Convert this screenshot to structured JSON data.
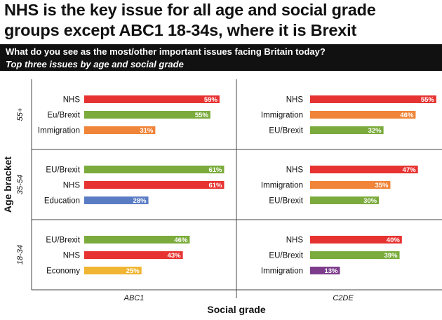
{
  "header": {
    "title_line1": "NHS is the key issue for all age and social grade",
    "title_line2": "groups except ABC1 18-34s, where it is Brexit",
    "question": "What do you see as the most/other important issues facing Britain today?",
    "subtitle": "Top three issues by age and social grade"
  },
  "colors": {
    "nhs": "#e63331",
    "brexit": "#7aab3c",
    "immigration": "#f08438",
    "education": "#5a7cc4",
    "economy": "#f0b532",
    "immigration_alt": "#7d3d8c",
    "banner": "#111111",
    "grid": "#444444"
  },
  "chart_data": {
    "type": "bar",
    "ylabel": "Age bracket",
    "xlabel": "Social grade",
    "columns": [
      "ABC1",
      "C2DE"
    ],
    "rows": [
      "55+",
      "35-54",
      "18-34"
    ],
    "panels": [
      {
        "row": "55+",
        "column": "ABC1",
        "bars": [
          {
            "label": "NHS",
            "value": 59,
            "value_label": "59%",
            "color": "#e63331"
          },
          {
            "label": "Eu/Brexit",
            "value": 55,
            "value_label": "55%",
            "color": "#7aab3c"
          },
          {
            "label": "Immigration",
            "value": 31,
            "value_label": "31%",
            "color": "#f08438"
          }
        ]
      },
      {
        "row": "55+",
        "column": "C2DE",
        "bars": [
          {
            "label": "NHS",
            "value": 55,
            "value_label": "55%",
            "color": "#e63331"
          },
          {
            "label": "Immigration",
            "value": 46,
            "value_label": "46%",
            "color": "#f08438"
          },
          {
            "label": "EU/Brexit",
            "value": 32,
            "value_label": "32%",
            "color": "#7aab3c"
          }
        ]
      },
      {
        "row": "35-54",
        "column": "ABC1",
        "bars": [
          {
            "label": "EU/Brexit",
            "value": 61,
            "value_label": "61%",
            "color": "#7aab3c"
          },
          {
            "label": "NHS",
            "value": 61,
            "value_label": "61%",
            "color": "#e63331"
          },
          {
            "label": "Education",
            "value": 28,
            "value_label": "28%",
            "color": "#5a7cc4"
          }
        ]
      },
      {
        "row": "35-54",
        "column": "C2DE",
        "bars": [
          {
            "label": "NHS",
            "value": 47,
            "value_label": "47%",
            "color": "#e63331"
          },
          {
            "label": "Immigration",
            "value": 35,
            "value_label": "35%",
            "color": "#f08438"
          },
          {
            "label": "EU/Brexit",
            "value": 30,
            "value_label": "30%",
            "color": "#7aab3c"
          }
        ]
      },
      {
        "row": "18-34",
        "column": "ABC1",
        "bars": [
          {
            "label": "EU/Brexit",
            "value": 46,
            "value_label": "46%",
            "color": "#7aab3c"
          },
          {
            "label": "NHS",
            "value": 43,
            "value_label": "43%",
            "color": "#e63331"
          },
          {
            "label": "Economy",
            "value": 25,
            "value_label": "25%",
            "color": "#f0b532"
          }
        ]
      },
      {
        "row": "18-34",
        "column": "C2DE",
        "bars": [
          {
            "label": "NHS",
            "value": 40,
            "value_label": "40%",
            "color": "#e63331"
          },
          {
            "label": "EU/Brexit",
            "value": 39,
            "value_label": "39%",
            "color": "#7aab3c"
          },
          {
            "label": "Immigration",
            "value": 13,
            "value_label": "13%",
            "color": "#7d3d8c"
          }
        ]
      }
    ]
  }
}
